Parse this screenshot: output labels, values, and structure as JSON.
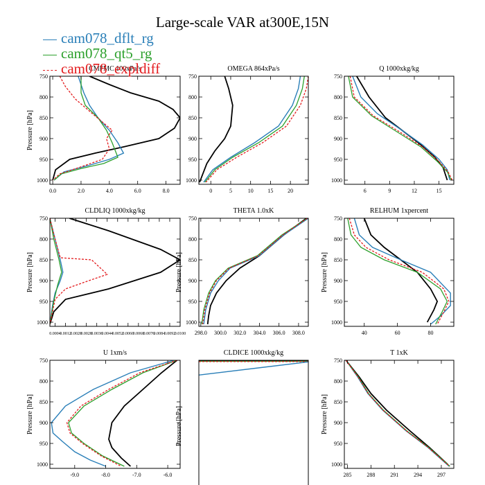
{
  "title": "Large-scale VAR at300E,15N",
  "colors": {
    "dflt": "#2a7fb8",
    "qt5": "#2ca02c",
    "expldiff": "#e31a1c",
    "obs": "#000000"
  },
  "legend": [
    {
      "label": "cam078_dflt_rg",
      "color": "#2a7fb8",
      "style": "solid"
    },
    {
      "label": "cam078_qt5_rg",
      "color": "#2ca02c",
      "style": "solid"
    },
    {
      "label": "cam078_expldiff",
      "color": "#e31a1c",
      "style": "dashed"
    }
  ],
  "chart_data": [
    {
      "type": "line",
      "title": "CMFMC  100xPa/s",
      "ylabel": "Pressure [hPa]",
      "xlim": [
        -0.2,
        9.0
      ],
      "ylim": [
        1010,
        750
      ],
      "xticks": [
        0,
        2,
        4,
        6,
        8
      ],
      "xticklabels": [
        "0.0",
        "2.0",
        "4.0",
        "6.0",
        "8.0"
      ],
      "yticks": [
        750,
        800,
        850,
        900,
        950,
        1000
      ],
      "series": [
        {
          "key": "obs",
          "x": [
            2.6,
            4.0,
            5.5,
            7.5,
            8.5,
            9.0,
            8.6,
            7.5,
            5.0,
            3.0,
            1.2,
            0.2,
            0.0
          ],
          "y": [
            750,
            770,
            790,
            810,
            830,
            850,
            875,
            900,
            920,
            935,
            950,
            975,
            1000
          ]
        },
        {
          "key": "dflt",
          "x": [
            1.8,
            2.2,
            2.6,
            3.2,
            4.0,
            4.6,
            5.0,
            4.0,
            2.5,
            0.8,
            0.1
          ],
          "y": [
            750,
            790,
            820,
            850,
            880,
            910,
            935,
            950,
            965,
            980,
            1000
          ]
        },
        {
          "key": "qt5",
          "x": [
            2.0,
            2.0,
            2.3,
            3.2,
            3.8,
            4.2,
            4.6,
            3.6,
            2.0,
            0.6,
            0.1
          ],
          "y": [
            750,
            790,
            820,
            850,
            880,
            910,
            945,
            960,
            972,
            985,
            1000
          ]
        },
        {
          "key": "expldiff",
          "x": [
            0.5,
            0.9,
            1.6,
            2.8,
            4.2,
            3.8,
            4.0,
            3.5,
            2.0,
            0.5,
            0.0
          ],
          "y": [
            750,
            775,
            805,
            840,
            880,
            900,
            925,
            950,
            968,
            985,
            1000
          ]
        }
      ]
    },
    {
      "type": "line",
      "title": "OMEGA  864xPa/s",
      "ylabel": "",
      "xlim": [
        -3,
        24.5
      ],
      "ylim": [
        1010,
        750
      ],
      "xticks": [
        0,
        5,
        10,
        15,
        20
      ],
      "xticklabels": [
        "0",
        "5",
        "10",
        "15",
        "20"
      ],
      "yticks": [
        750,
        800,
        850,
        900,
        950,
        1000
      ],
      "series": [
        {
          "key": "obs",
          "x": [
            3.5,
            4.5,
            5.5,
            5.0,
            3.5,
            1.0,
            -1.0,
            -2.8
          ],
          "y": [
            750,
            780,
            820,
            870,
            900,
            930,
            960,
            1005
          ]
        },
        {
          "key": "dflt",
          "x": [
            22.5,
            22.0,
            20.5,
            17.0,
            11.0,
            5.0,
            0.5,
            -1.8
          ],
          "y": [
            750,
            780,
            820,
            870,
            910,
            945,
            975,
            1005
          ]
        },
        {
          "key": "qt5",
          "x": [
            23.5,
            23.0,
            21.5,
            18.0,
            12.0,
            5.5,
            1.0,
            -1.5
          ],
          "y": [
            750,
            780,
            820,
            870,
            910,
            945,
            975,
            1005
          ]
        },
        {
          "key": "expldiff",
          "x": [
            24.5,
            24.0,
            22.5,
            19.0,
            13.0,
            6.5,
            1.5,
            -1.2
          ],
          "y": [
            750,
            780,
            820,
            870,
            910,
            945,
            975,
            1005
          ]
        }
      ]
    },
    {
      "type": "line",
      "title": "Q  1000xkg/kg",
      "ylabel": "",
      "xlim": [
        3.5,
        16.8
      ],
      "ylim": [
        1010,
        750
      ],
      "xticks": [
        6,
        9,
        12,
        15
      ],
      "xticklabels": [
        "6",
        "9",
        "12",
        "15"
      ],
      "yticks": [
        750,
        800,
        850,
        900,
        950,
        1000
      ],
      "series": [
        {
          "key": "obs",
          "x": [
            5.0,
            6.5,
            8.5,
            10.5,
            12.5,
            14.5,
            15.5,
            16.0
          ],
          "y": [
            750,
            800,
            850,
            880,
            910,
            945,
            970,
            1000
          ]
        },
        {
          "key": "dflt",
          "x": [
            4.5,
            5.5,
            7.5,
            10.5,
            13.0,
            15.0,
            16.0,
            16.3
          ],
          "y": [
            750,
            800,
            840,
            880,
            915,
            950,
            975,
            1000
          ]
        },
        {
          "key": "qt5",
          "x": [
            4.0,
            4.5,
            6.8,
            10.0,
            12.8,
            14.8,
            16.0,
            16.5
          ],
          "y": [
            750,
            800,
            845,
            885,
            920,
            955,
            980,
            1000
          ]
        },
        {
          "key": "expldiff",
          "x": [
            4.2,
            4.7,
            7.0,
            10.3,
            13.0,
            15.0,
            16.1,
            16.6
          ],
          "y": [
            750,
            800,
            845,
            885,
            920,
            955,
            980,
            1000
          ]
        }
      ]
    },
    {
      "type": "line",
      "title": "CLDLIQ  1000xkg/kg",
      "ylabel": "Pressure [hPa]",
      "xlim": [
        0,
        0.01
      ],
      "ylim": [
        1010,
        750
      ],
      "xticks": [
        0.0004,
        0.0012,
        0.002,
        0.0028,
        0.0036,
        0.0044,
        0.0052,
        0.006,
        0.0068,
        0.0076,
        0.0084,
        0.0092,
        0.01
      ],
      "xticklabels": [
        "0.0004",
        "0.0012",
        "0.0020",
        "0.0028",
        "0.0036",
        "0.0044",
        "0.0052",
        "0.0060",
        "0.0068",
        "0.0076",
        "0.0084",
        "0.0092",
        "0.0100"
      ],
      "yticks": [
        750,
        800,
        850,
        900,
        950,
        1000
      ],
      "series": [
        {
          "key": "obs",
          "x": [
            0.0015,
            0.0045,
            0.0085,
            0.01,
            0.0085,
            0.0045,
            0.0012,
            0.0003,
            0.0
          ],
          "y": [
            750,
            780,
            825,
            850,
            880,
            920,
            945,
            975,
            1005
          ]
        },
        {
          "key": "dflt",
          "x": [
            0.0,
            0.0004,
            0.0008,
            0.001,
            0.0008,
            0.0004,
            0.0002,
            0.0
          ],
          "y": [
            750,
            800,
            850,
            880,
            900,
            930,
            960,
            1005
          ]
        },
        {
          "key": "qt5",
          "x": [
            0.0,
            0.0003,
            0.0007,
            0.0009,
            0.0006,
            0.0003,
            0.0
          ],
          "y": [
            750,
            800,
            850,
            880,
            910,
            950,
            1005
          ]
        },
        {
          "key": "expldiff",
          "x": [
            0.0,
            0.0004,
            0.0008,
            0.0032,
            0.0044,
            0.003,
            0.0012,
            0.0004,
            0.0
          ],
          "y": [
            750,
            800,
            845,
            850,
            885,
            900,
            920,
            945,
            1005
          ]
        }
      ]
    },
    {
      "type": "line",
      "title": "THETA  1.0xK",
      "ylabel": "Pressure [hPa]",
      "xlim": [
        297.8,
        309.0
      ],
      "ylim": [
        1010,
        750
      ],
      "xticks": [
        298,
        300,
        302,
        304,
        306,
        308
      ],
      "xticklabels": [
        "298.0",
        "300.0",
        "302.0",
        "304.0",
        "306.0",
        "308.0"
      ],
      "yticks": [
        750,
        800,
        850,
        900,
        950,
        1000
      ],
      "series": [
        {
          "key": "obs",
          "x": [
            308.8,
            306.5,
            304.0,
            302.0,
            300.6,
            299.6,
            299.0,
            298.8,
            298.7
          ],
          "y": [
            750,
            790,
            840,
            870,
            900,
            930,
            960,
            985,
            1005
          ]
        },
        {
          "key": "dflt",
          "x": [
            309.0,
            306.5,
            304.0,
            301.0,
            299.8,
            299.0,
            298.5,
            298.3
          ],
          "y": [
            750,
            790,
            840,
            870,
            900,
            930,
            970,
            1005
          ]
        },
        {
          "key": "qt5",
          "x": [
            308.9,
            306.3,
            303.8,
            300.8,
            299.5,
            298.8,
            298.3,
            298.1
          ],
          "y": [
            750,
            790,
            840,
            870,
            900,
            930,
            970,
            1005
          ]
        },
        {
          "key": "expldiff",
          "x": [
            308.9,
            306.4,
            303.9,
            300.9,
            299.6,
            298.9,
            298.4,
            298.2
          ],
          "y": [
            750,
            790,
            840,
            870,
            900,
            930,
            970,
            1005
          ]
        }
      ]
    },
    {
      "type": "line",
      "title": "RELHUM  1xpercent",
      "ylabel": "Pressure [hPa]",
      "xlim": [
        28,
        94
      ],
      "ylim": [
        1010,
        750
      ],
      "xticks": [
        40,
        60,
        80
      ],
      "xticklabels": [
        "40",
        "60",
        "80"
      ],
      "yticks": [
        750,
        800,
        850,
        900,
        950,
        1000
      ],
      "series": [
        {
          "key": "obs",
          "x": [
            40,
            44,
            52,
            62,
            72,
            80,
            84,
            82,
            78
          ],
          "y": [
            750,
            790,
            820,
            850,
            880,
            920,
            950,
            970,
            1000
          ]
        },
        {
          "key": "dflt",
          "x": [
            34,
            37,
            45,
            62,
            80,
            92,
            92,
            86,
            80
          ],
          "y": [
            750,
            790,
            820,
            850,
            880,
            930,
            960,
            985,
            1005
          ]
        },
        {
          "key": "qt5",
          "x": [
            30,
            32,
            38,
            52,
            72,
            86,
            90,
            87,
            83
          ],
          "y": [
            750,
            790,
            820,
            850,
            880,
            920,
            950,
            975,
            1005
          ]
        },
        {
          "key": "expldiff",
          "x": [
            31,
            34,
            41,
            55,
            75,
            88,
            91,
            88,
            84
          ],
          "y": [
            750,
            790,
            820,
            850,
            880,
            920,
            950,
            975,
            1005
          ]
        }
      ]
    },
    {
      "type": "line",
      "title": "U  1xm/s",
      "ylabel": "Pressure [hPa]",
      "xlim": [
        -9.8,
        -5.6
      ],
      "ylim": [
        1010,
        750
      ],
      "xticks": [
        -9,
        -8,
        -7,
        -6
      ],
      "xticklabels": [
        "-9.0",
        "-8.0",
        "-7.0",
        "-6.0"
      ],
      "yticks": [
        750,
        800,
        850,
        900,
        950,
        1000
      ],
      "series": [
        {
          "key": "obs",
          "x": [
            -5.7,
            -6.2,
            -6.8,
            -7.4,
            -7.8,
            -7.9,
            -7.8,
            -7.5,
            -7.2
          ],
          "y": [
            750,
            780,
            820,
            860,
            900,
            940,
            960,
            985,
            1005
          ]
        },
        {
          "key": "dflt",
          "x": [
            -5.8,
            -7.2,
            -8.4,
            -9.3,
            -9.75,
            -9.7,
            -9.4,
            -9.0,
            -8.5,
            -8.0
          ],
          "y": [
            750,
            780,
            820,
            860,
            900,
            925,
            945,
            970,
            990,
            1005
          ]
        },
        {
          "key": "qt5",
          "x": [
            -5.7,
            -6.8,
            -7.8,
            -8.7,
            -9.2,
            -9.1,
            -8.7,
            -8.1,
            -7.4
          ],
          "y": [
            750,
            780,
            820,
            860,
            900,
            925,
            950,
            980,
            1005
          ]
        },
        {
          "key": "expldiff",
          "x": [
            -5.7,
            -6.9,
            -7.9,
            -8.8,
            -9.25,
            -9.15,
            -8.75,
            -8.15,
            -7.5
          ],
          "y": [
            750,
            780,
            820,
            860,
            900,
            925,
            950,
            980,
            1005
          ]
        }
      ]
    },
    {
      "type": "line",
      "title": "CLDICE  1000xkg/kg",
      "ylabel": "Pressure [hPa]",
      "xlim": [
        0,
        1
      ],
      "ylim": [
        1000,
        750
      ],
      "xticks": [],
      "xticklabels": [],
      "yticks": [],
      "series": [
        {
          "key": "obs",
          "x": [
            0,
            1
          ],
          "y": [
            751,
            751
          ]
        },
        {
          "key": "qt5",
          "x": [
            0,
            1
          ],
          "y": [
            752,
            752
          ]
        },
        {
          "key": "expldiff",
          "x": [
            0,
            1
          ],
          "y": [
            752.5,
            752.5
          ]
        },
        {
          "key": "dflt",
          "x": [
            0,
            1
          ],
          "y": [
            778,
            753
          ]
        }
      ]
    },
    {
      "type": "line",
      "title": "T  1xK",
      "ylabel": "Pressure [hPa]",
      "xlim": [
        284.6,
        298.6
      ],
      "ylim": [
        1010,
        750
      ],
      "xticks": [
        285,
        288,
        291,
        294,
        297
      ],
      "xticklabels": [
        "285",
        "288",
        "291",
        "294",
        "297"
      ],
      "yticks": [
        750,
        800,
        850,
        900,
        950,
        1000
      ],
      "series": [
        {
          "key": "obs",
          "x": [
            284.8,
            286.5,
            288.0,
            290.0,
            293.0,
            295.5,
            297.8
          ],
          "y": [
            750,
            790,
            830,
            870,
            920,
            960,
            1000
          ]
        },
        {
          "key": "dflt",
          "x": [
            284.8,
            286.3,
            287.6,
            289.5,
            292.5,
            295.3,
            298.0
          ],
          "y": [
            750,
            790,
            830,
            870,
            920,
            960,
            1005
          ]
        },
        {
          "key": "qt5",
          "x": [
            284.8,
            286.4,
            287.7,
            289.6,
            292.6,
            295.4,
            298.1
          ],
          "y": [
            750,
            790,
            830,
            870,
            920,
            960,
            1005
          ]
        },
        {
          "key": "expldiff",
          "x": [
            284.8,
            286.35,
            287.65,
            289.55,
            292.55,
            295.35,
            298.05
          ],
          "y": [
            750,
            790,
            830,
            870,
            920,
            960,
            1005
          ]
        }
      ]
    }
  ]
}
